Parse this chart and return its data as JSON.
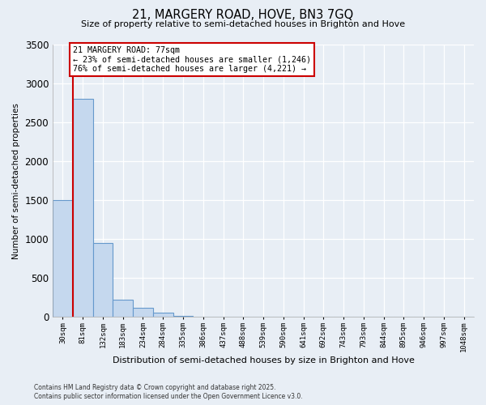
{
  "title_line1": "21, MARGERY ROAD, HOVE, BN3 7GQ",
  "title_line2": "Size of property relative to semi-detached houses in Brighton and Hove",
  "xlabel": "Distribution of semi-detached houses by size in Brighton and Hove",
  "ylabel": "Number of semi-detached properties",
  "categories": [
    "30sqm",
    "81sqm",
    "132sqm",
    "183sqm",
    "234sqm",
    "284sqm",
    "335sqm",
    "386sqm",
    "437sqm",
    "488sqm",
    "539sqm",
    "590sqm",
    "641sqm",
    "692sqm",
    "743sqm",
    "793sqm",
    "844sqm",
    "895sqm",
    "946sqm",
    "997sqm",
    "1048sqm"
  ],
  "values": [
    1500,
    2800,
    950,
    220,
    120,
    50,
    10,
    0,
    0,
    0,
    0,
    0,
    0,
    0,
    0,
    0,
    0,
    0,
    0,
    0,
    0
  ],
  "bar_color": "#c5d8ee",
  "bar_edge_color": "#6699cc",
  "annotation_line1": "21 MARGERY ROAD: 77sqm",
  "annotation_line2": "← 23% of semi-detached houses are smaller (1,246)",
  "annotation_line3": "76% of semi-detached houses are larger (4,221) →",
  "ylim": [
    0,
    3500
  ],
  "yticks": [
    0,
    500,
    1000,
    1500,
    2000,
    2500,
    3000,
    3500
  ],
  "line_color": "#cc0000",
  "box_edge_color": "#cc0000",
  "background_color": "#e8eef5",
  "grid_color": "#ffffff",
  "footnote_line1": "Contains HM Land Registry data © Crown copyright and database right 2025.",
  "footnote_line2": "Contains public sector information licensed under the Open Government Licence v3.0."
}
